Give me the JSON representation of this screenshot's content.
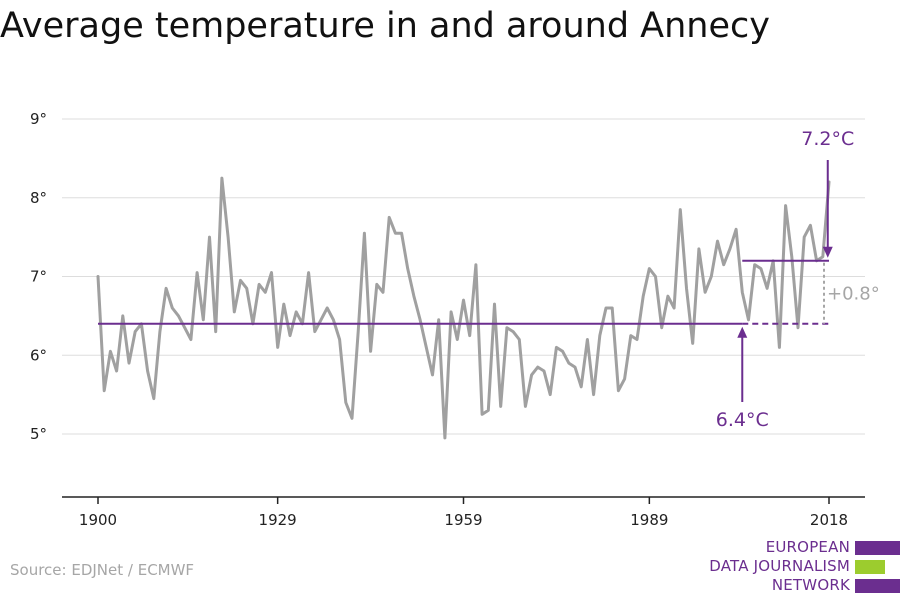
{
  "title": "Average temperature in and around Annecy",
  "source": "Source: EDJNet / ECMWF",
  "logo": {
    "lines": [
      "EUROPEAN",
      "DATA JOURNALISM",
      "NETWORK"
    ],
    "colors": {
      "purple": "#6b2e8f",
      "green": "#9ccc2e"
    }
  },
  "colors": {
    "line": "#a0a0a0",
    "annotation": "#6b2e8f",
    "delta": "#a6a6a6",
    "grid": "#dddddd",
    "axis": "#222222"
  },
  "chart_data": {
    "type": "line",
    "title": "Average temperature in and around Annecy",
    "xlim": [
      1900,
      2018
    ],
    "ylim": [
      4.2,
      9.3
    ],
    "x_ticks": [
      1900,
      1929,
      1959,
      1989,
      2018
    ],
    "y_ticks": [
      5,
      6,
      7,
      8,
      9
    ],
    "y_tick_labels": [
      "5°",
      "6°",
      "7°",
      "8°",
      "9°"
    ],
    "grid": true,
    "series": [
      {
        "x": [
          1900,
          1901,
          1902,
          1903,
          1904,
          1905,
          1906,
          1907,
          1908,
          1909,
          1910,
          1911,
          1912,
          1913,
          1914,
          1915,
          1916,
          1917,
          1918,
          1919,
          1920,
          1921,
          1922,
          1923,
          1924,
          1925,
          1926,
          1927,
          1928,
          1929,
          1930,
          1931,
          1932,
          1933,
          1934,
          1935,
          1936,
          1937,
          1938,
          1939,
          1940,
          1941,
          1942,
          1943,
          1944,
          1945,
          1946,
          1947,
          1948,
          1949,
          1950,
          1951,
          1952,
          1953,
          1954,
          1955,
          1956,
          1957,
          1958,
          1959,
          1960,
          1961,
          1962,
          1963,
          1964,
          1965,
          1966,
          1967,
          1968,
          1969,
          1970,
          1971,
          1972,
          1973,
          1974,
          1975,
          1976,
          1977,
          1978,
          1979,
          1980,
          1981,
          1982,
          1983,
          1984,
          1985,
          1986,
          1987,
          1988,
          1989,
          1990,
          1991,
          1992,
          1993,
          1994,
          1995,
          1996,
          1997,
          1998,
          1999,
          2000,
          2001,
          2002,
          2003,
          2004,
          2005,
          2006,
          2007,
          2008,
          2009,
          2010,
          2011,
          2012,
          2013,
          2014,
          2015,
          2016,
          2017,
          2018
        ],
        "values": [
          7.0,
          5.55,
          6.05,
          5.8,
          6.5,
          5.9,
          6.3,
          6.4,
          5.8,
          5.45,
          6.3,
          6.85,
          6.6,
          6.5,
          6.35,
          6.2,
          7.05,
          6.45,
          7.5,
          6.3,
          8.25,
          7.5,
          6.55,
          6.95,
          6.85,
          6.4,
          6.9,
          6.8,
          7.05,
          6.1,
          6.65,
          6.25,
          6.55,
          6.4,
          7.05,
          6.3,
          6.45,
          6.6,
          6.45,
          6.2,
          5.4,
          5.2,
          6.3,
          7.55,
          6.05,
          6.9,
          6.8,
          7.75,
          7.55,
          7.55,
          7.1,
          6.75,
          6.45,
          6.1,
          5.75,
          6.45,
          4.95,
          6.55,
          6.2,
          6.7,
          6.25,
          7.15,
          5.25,
          5.3,
          6.65,
          5.35,
          6.35,
          6.3,
          6.2,
          5.35,
          5.75,
          5.85,
          5.8,
          5.5,
          6.1,
          6.05,
          5.9,
          5.85,
          5.6,
          6.2,
          5.5,
          6.25,
          6.6,
          6.6,
          5.55,
          5.7,
          6.25,
          6.2,
          6.75,
          7.1,
          7.0,
          6.35,
          6.75,
          6.6,
          7.85,
          6.85,
          6.15,
          7.35,
          6.8,
          7.0,
          7.45,
          7.15,
          7.35,
          7.6,
          6.8,
          6.45,
          7.15,
          7.1,
          6.85,
          7.2,
          6.1,
          7.9,
          7.25,
          6.35,
          7.5,
          7.65,
          7.2,
          7.25,
          8.2
        ]
      }
    ],
    "annotations": {
      "baseline_value": 6.4,
      "baseline_label": "6.4°C",
      "recent_value": 7.2,
      "recent_label": "7.2°C",
      "delta_label": "+0.8°"
    }
  }
}
